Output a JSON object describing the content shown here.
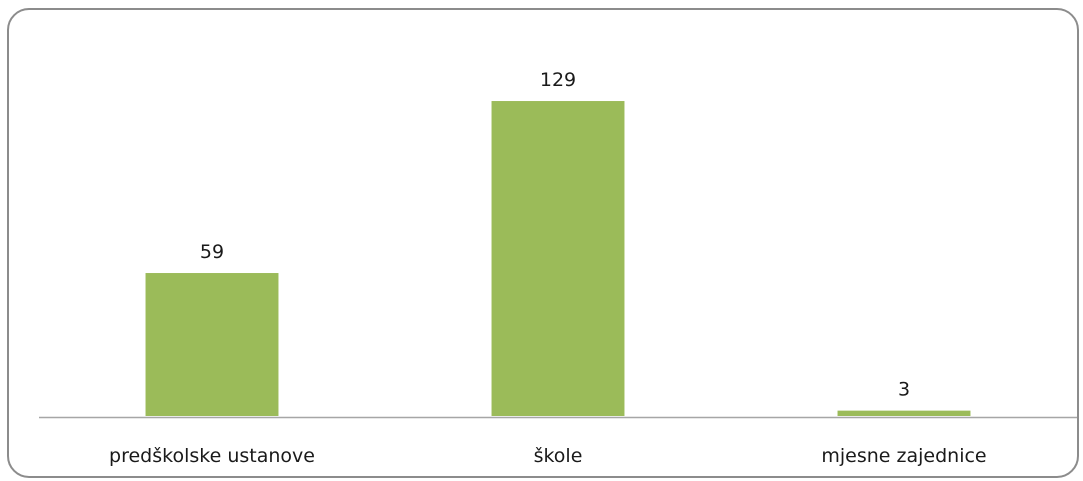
{
  "chart_data": {
    "type": "bar",
    "categories": [
      "predškolske ustanove",
      "škole",
      "mjesne zajednice"
    ],
    "values": [
      59,
      129,
      3
    ],
    "title": "",
    "xlabel": "",
    "ylabel": "",
    "ylim": [
      0,
      140
    ],
    "grid": false,
    "legend": "none",
    "data_labels": true,
    "colors": {
      "bar": "#9bbb59",
      "bar_edge": "#ffffff",
      "axis": "#a6a6a6",
      "frame": "#8c8c8c",
      "text": "#1a1a1a"
    }
  }
}
